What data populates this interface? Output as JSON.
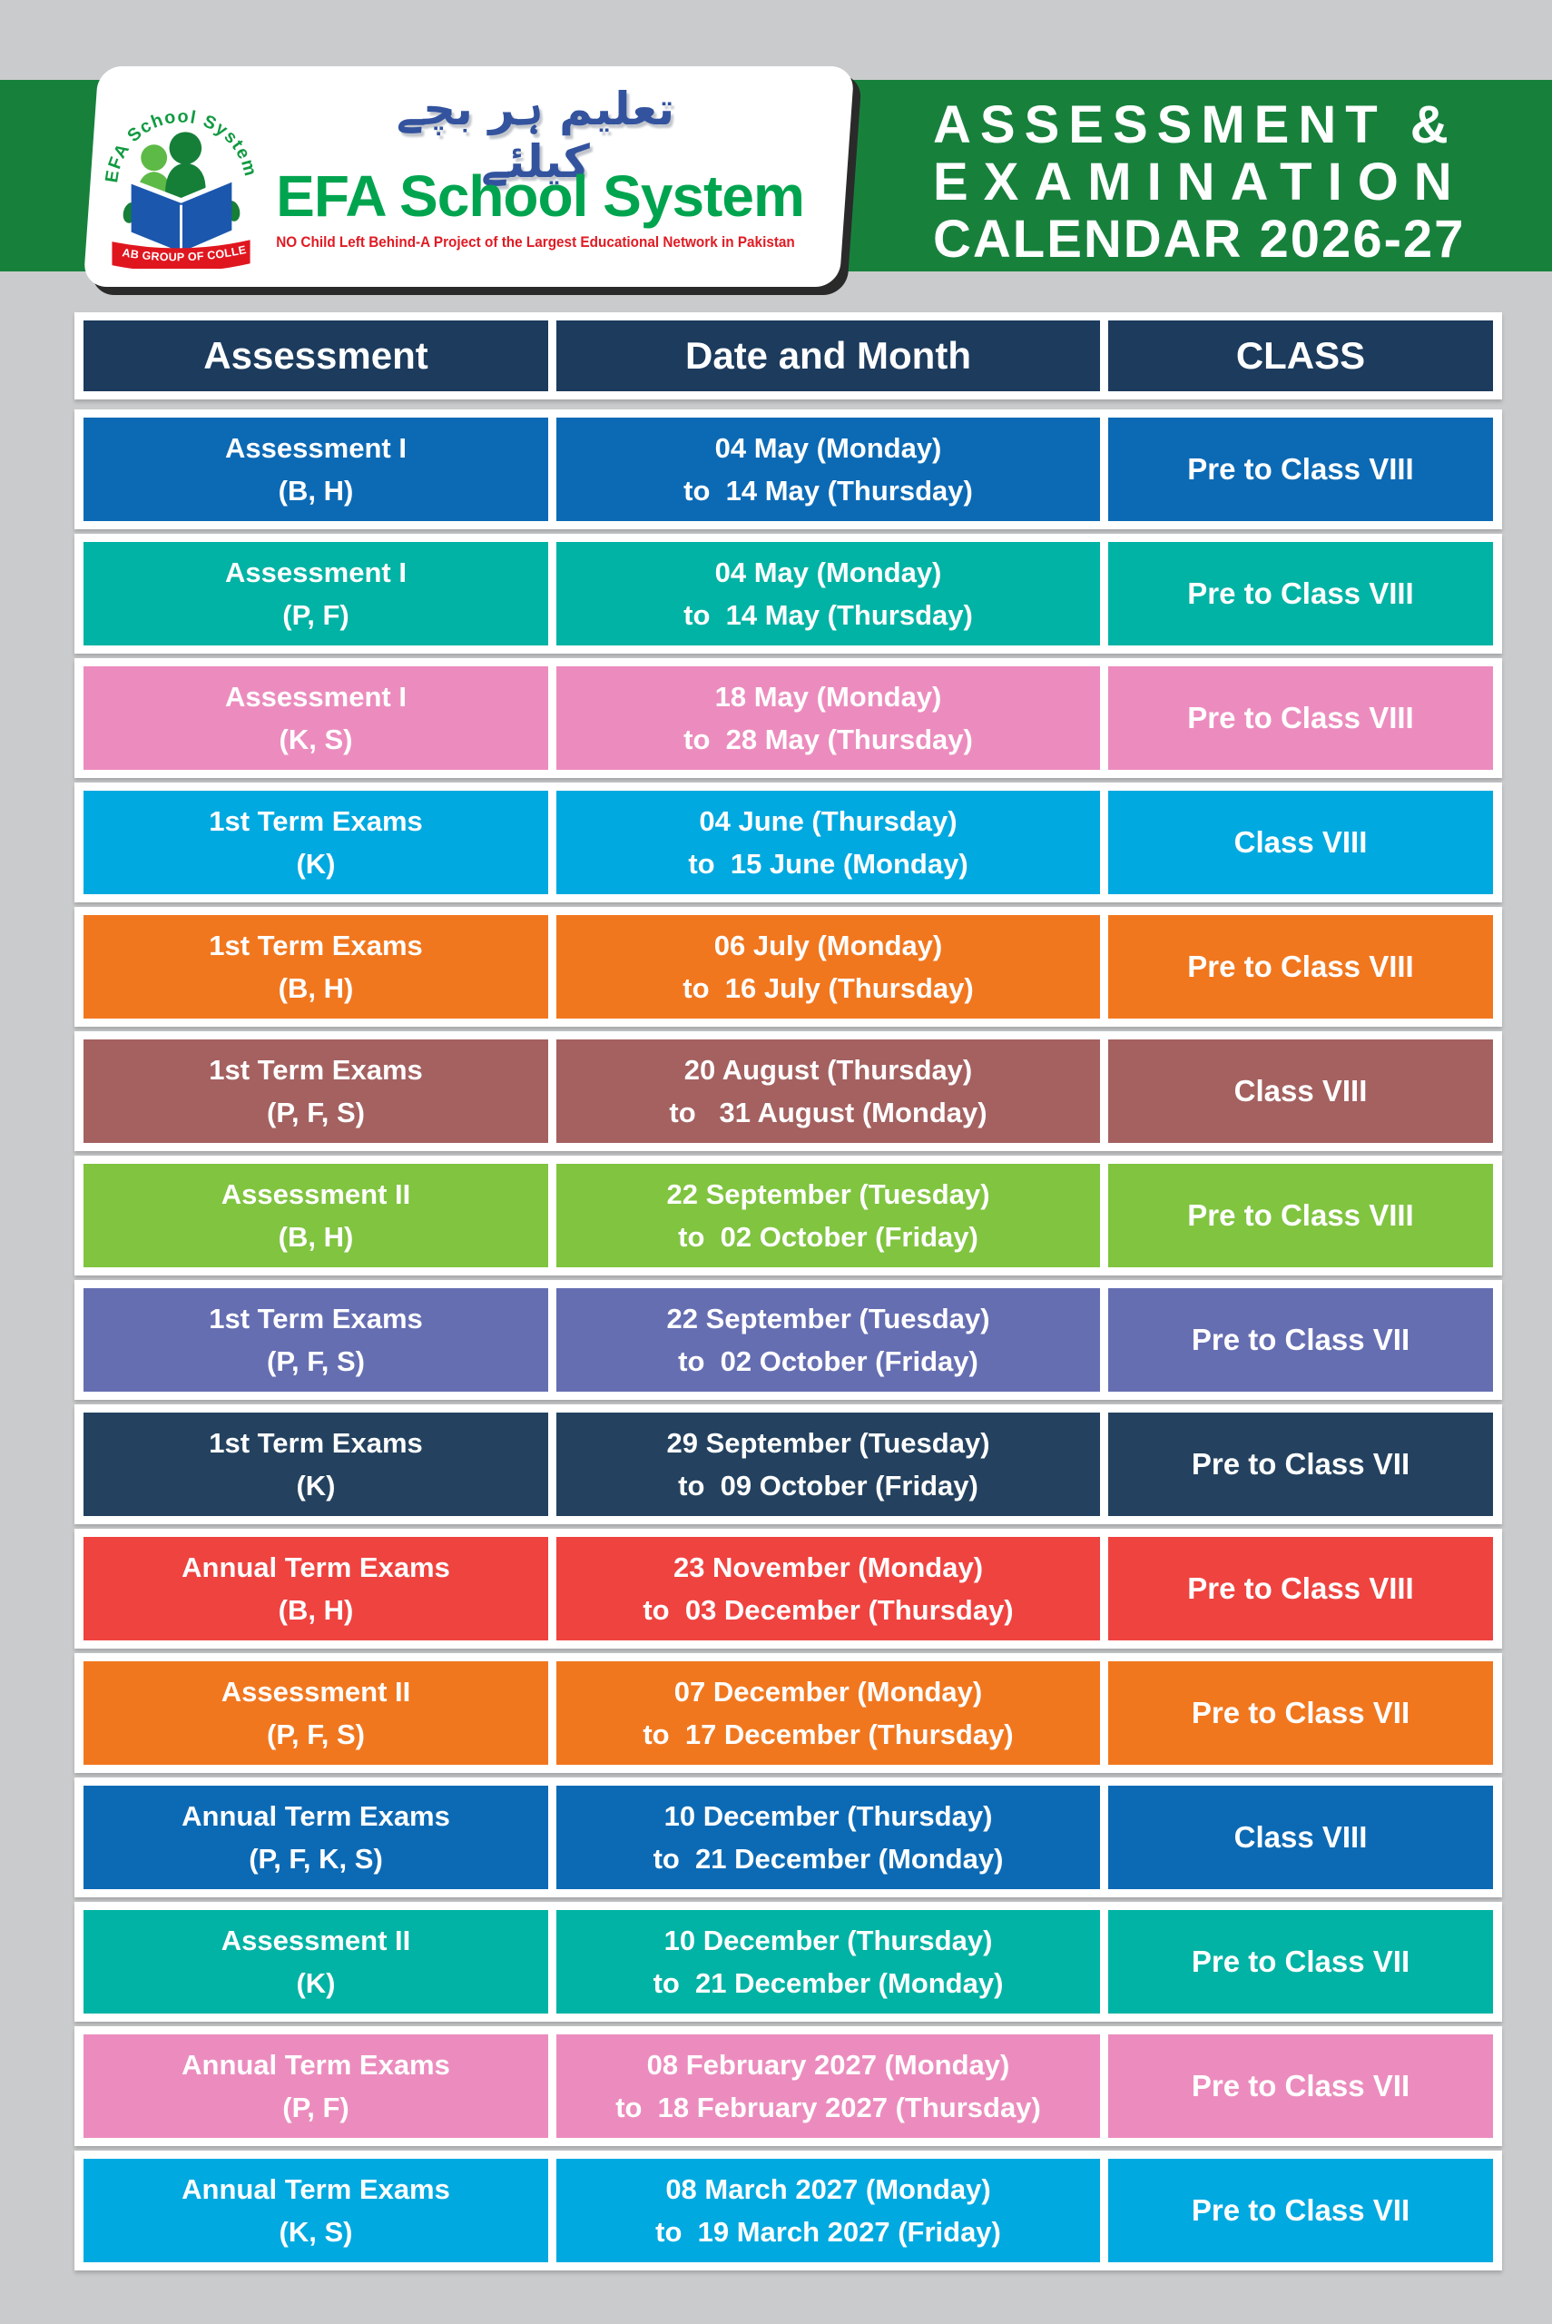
{
  "page": {
    "bg": "#c9cbcc"
  },
  "header": {
    "banner_color": "#17813c",
    "title_lines": [
      "ASSESSMENT &",
      "EXAMINATION",
      "CALENDAR 2026-27"
    ],
    "card": {
      "urdu": "تعلیم ہر بچے کیلئے",
      "brand": "EFA School System",
      "brand_color": "#00a44f",
      "tagline": "NO Child Left Behind-A Project of the Largest Educational Network in Pakistan",
      "tagline_color": "#e01b24",
      "logo": {
        "arc_text": "EFA School System",
        "ribbon": "PUNJAB GROUP OF COLLEGES"
      }
    }
  },
  "table": {
    "header_bg": "#1c3b5d",
    "columns": [
      "Assessment",
      "Date and Month",
      "CLASS"
    ],
    "rows": [
      {
        "name_l1": "Assessment I",
        "name_l2": "(B, H)",
        "date_l1": "04 May (Monday)",
        "date_l2": "to  14 May (Thursday)",
        "class_label": "Pre to Class VIII",
        "color": "#0c6ab5"
      },
      {
        "name_l1": "Assessment I",
        "name_l2": "(P, F)",
        "date_l1": "04 May (Monday)",
        "date_l2": "to  14 May (Thursday)",
        "class_label": "Pre to Class VIII",
        "color": "#00b3a4"
      },
      {
        "name_l1": "Assessment I",
        "name_l2": "(K, S)",
        "date_l1": "18 May (Monday)",
        "date_l2": "to  28 May (Thursday)",
        "class_label": "Pre to Class VIII",
        "color": "#ec8cbe"
      },
      {
        "name_l1": "1st Term Exams",
        "name_l2": "(K)",
        "date_l1": "04 June (Thursday)",
        "date_l2": "to  15 June (Monday)",
        "class_label": "Class VIII",
        "color": "#00a9e0"
      },
      {
        "name_l1": "1st Term Exams",
        "name_l2": "(B, H)",
        "date_l1": "06 July (Monday)",
        "date_l2": "to  16 July (Thursday)",
        "class_label": "Pre to Class VIII",
        "color": "#f1771f"
      },
      {
        "name_l1": "1st Term Exams",
        "name_l2": "(P, F, S)",
        "date_l1": "20 August (Thursday)",
        "date_l2": "to   31 August (Monday)",
        "class_label": "Class VIII",
        "color": "#a46160"
      },
      {
        "name_l1": "Assessment II",
        "name_l2": "(B, H)",
        "date_l1": "22 September (Tuesday)",
        "date_l2": "to  02 October (Friday)",
        "class_label": "Pre to Class VIII",
        "color": "#80c440"
      },
      {
        "name_l1": "1st Term Exams",
        "name_l2": "(P, F, S)",
        "date_l1": "22 September (Tuesday)",
        "date_l2": "to  02 October (Friday)",
        "class_label": "Pre to Class VII",
        "color": "#666eb2"
      },
      {
        "name_l1": "1st Term Exams",
        "name_l2": "(K)",
        "date_l1": "29 September (Tuesday)",
        "date_l2": "to  09 October (Friday)",
        "class_label": "Pre to Class VII",
        "color": "#24425f"
      },
      {
        "name_l1": "Annual Term Exams",
        "name_l2": "(B, H)",
        "date_l1": "23 November (Monday)",
        "date_l2": "to  03 December (Thursday)",
        "class_label": "Pre to Class VIII",
        "color": "#ef4340"
      },
      {
        "name_l1": "Assessment II",
        "name_l2": "(P, F, S)",
        "date_l1": "07 December (Monday)",
        "date_l2": "to  17 December (Thursday)",
        "class_label": "Pre to Class VII",
        "color": "#f1771f"
      },
      {
        "name_l1": "Annual Term Exams",
        "name_l2": "(P, F, K, S)",
        "date_l1": "10 December (Thursday)",
        "date_l2": "to  21 December (Monday)",
        "class_label": "Class VIII",
        "color": "#0c6ab5"
      },
      {
        "name_l1": "Assessment II",
        "name_l2": "(K)",
        "date_l1": "10 December (Thursday)",
        "date_l2": "to  21 December (Monday)",
        "class_label": "Pre to Class VII",
        "color": "#00b3a4"
      },
      {
        "name_l1": "Annual Term Exams",
        "name_l2": "(P, F)",
        "date_l1": "08 February 2027 (Monday)",
        "date_l2": "to  18 February 2027 (Thursday)",
        "class_label": "Pre to Class VII",
        "color": "#ec8cbe"
      },
      {
        "name_l1": "Annual Term Exams",
        "name_l2": "(K, S)",
        "date_l1": "08 March 2027 (Monday)",
        "date_l2": "to  19 March 2027 (Friday)",
        "class_label": "Pre to Class VII",
        "color": "#00a9e0"
      }
    ]
  }
}
